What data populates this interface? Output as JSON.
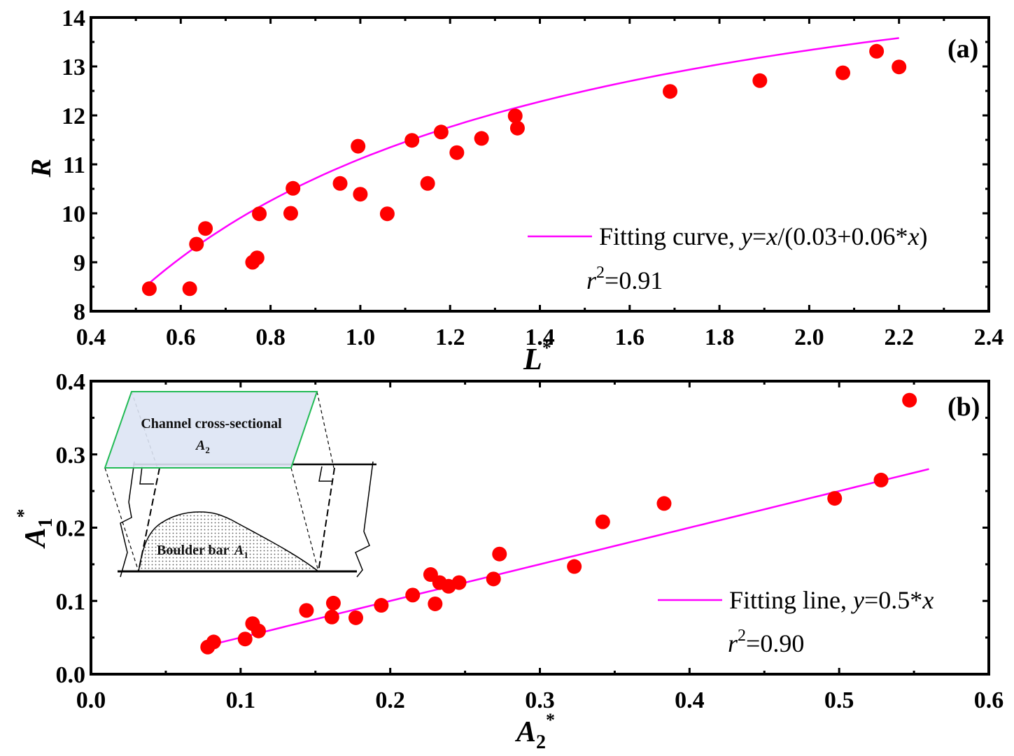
{
  "chart_data": [
    {
      "id": "a",
      "type": "scatter",
      "panel_label": "(a)",
      "xlabel": "L",
      "xlabel_sup": "*",
      "ylabel": "R",
      "xlim": [
        0.4,
        2.4
      ],
      "ylim": [
        8,
        14
      ],
      "xticks": [
        0.4,
        0.6,
        0.8,
        1.0,
        1.2,
        1.4,
        1.6,
        1.8,
        2.0,
        2.2,
        2.4
      ],
      "xtick_labels": [
        "0.4",
        "0.6",
        "0.8",
        "1.0",
        "1.2",
        "1.4",
        "1.6",
        "1.8",
        "2.0",
        "2.2",
        "2.4"
      ],
      "yticks": [
        8,
        9,
        10,
        11,
        12,
        13,
        14
      ],
      "ytick_labels": [
        "8",
        "9",
        "10",
        "11",
        "12",
        "13",
        "14"
      ],
      "grid": false,
      "marker_color": "#ff0000",
      "fit_color": "#ff00ff",
      "points": [
        [
          0.53,
          8.46
        ],
        [
          0.62,
          8.46
        ],
        [
          0.635,
          9.37
        ],
        [
          0.655,
          9.69
        ],
        [
          0.76,
          9.0
        ],
        [
          0.77,
          9.09
        ],
        [
          0.775,
          9.99
        ],
        [
          0.845,
          10.0
        ],
        [
          0.85,
          10.51
        ],
        [
          0.955,
          10.61
        ],
        [
          0.995,
          11.37
        ],
        [
          1.0,
          10.39
        ],
        [
          1.06,
          9.99
        ],
        [
          1.115,
          11.49
        ],
        [
          1.15,
          10.61
        ],
        [
          1.18,
          11.66
        ],
        [
          1.215,
          11.24
        ],
        [
          1.27,
          11.53
        ],
        [
          1.345,
          11.99
        ],
        [
          1.35,
          11.74
        ],
        [
          1.69,
          12.49
        ],
        [
          1.89,
          12.71
        ],
        [
          2.075,
          12.87
        ],
        [
          2.15,
          13.31
        ],
        [
          2.2,
          12.99
        ]
      ],
      "fit": {
        "type": "hyperbolic",
        "a": 0.03,
        "b": 0.06,
        "x_range": [
          0.52,
          2.2
        ]
      },
      "legend": {
        "position": "bottom-right",
        "label_prefix": "Fitting curve, ",
        "label_y": "y",
        "label_eq1": "=",
        "label_x1": "x",
        "label_eq2": "/(0.03+0.06*",
        "label_x2": "x",
        "label_close": ")",
        "r2_r": "r",
        "r2_sup": "2",
        "r2_value": "=0.91"
      }
    },
    {
      "id": "b",
      "type": "scatter",
      "panel_label": "(b)",
      "xlabel": "A",
      "xlabel_sub": "2",
      "xlabel_sup": "*",
      "ylabel": "A",
      "ylabel_sub": "1",
      "ylabel_sup": "*",
      "xlim": [
        0.0,
        0.6
      ],
      "ylim": [
        0.0,
        0.4
      ],
      "xticks": [
        0.0,
        0.1,
        0.2,
        0.3,
        0.4,
        0.5,
        0.6
      ],
      "xtick_labels": [
        "0.0",
        "0.1",
        "0.2",
        "0.3",
        "0.4",
        "0.5",
        "0.6"
      ],
      "yticks": [
        0.0,
        0.1,
        0.2,
        0.3,
        0.4
      ],
      "ytick_labels": [
        "0.0",
        "0.1",
        "0.2",
        "0.3",
        "0.4"
      ],
      "grid": false,
      "marker_color": "#ff0000",
      "fit_color": "#ff00ff",
      "points": [
        [
          0.078,
          0.037
        ],
        [
          0.082,
          0.044
        ],
        [
          0.103,
          0.048
        ],
        [
          0.108,
          0.069
        ],
        [
          0.112,
          0.059
        ],
        [
          0.144,
          0.087
        ],
        [
          0.161,
          0.078
        ],
        [
          0.162,
          0.097
        ],
        [
          0.177,
          0.077
        ],
        [
          0.194,
          0.094
        ],
        [
          0.215,
          0.108
        ],
        [
          0.227,
          0.136
        ],
        [
          0.23,
          0.096
        ],
        [
          0.233,
          0.125
        ],
        [
          0.239,
          0.12
        ],
        [
          0.246,
          0.125
        ],
        [
          0.269,
          0.13
        ],
        [
          0.273,
          0.164
        ],
        [
          0.323,
          0.147
        ],
        [
          0.342,
          0.208
        ],
        [
          0.383,
          0.233
        ],
        [
          0.497,
          0.24
        ],
        [
          0.528,
          0.265
        ],
        [
          0.547,
          0.374
        ]
      ],
      "fit": {
        "type": "linear",
        "slope": 0.5,
        "x_range": [
          0.078,
          0.56
        ]
      },
      "legend": {
        "position": "bottom-right",
        "label_prefix": "Fitting line, ",
        "label_y": "y",
        "label_eq": "=0.5*",
        "label_x": "x",
        "r2_r": "r",
        "r2_sup": "2",
        "r2_value": "=0.90"
      },
      "inset": {
        "top_label": "Channel cross-sectional",
        "top_var": "A",
        "top_var_sub": "2",
        "bottom_label": "Boulder bar",
        "bottom_var": "A",
        "bottom_var_sub": "1",
        "parallelogram_fill": "#dde4f4",
        "parallelogram_stroke": "#22bb55"
      }
    }
  ]
}
